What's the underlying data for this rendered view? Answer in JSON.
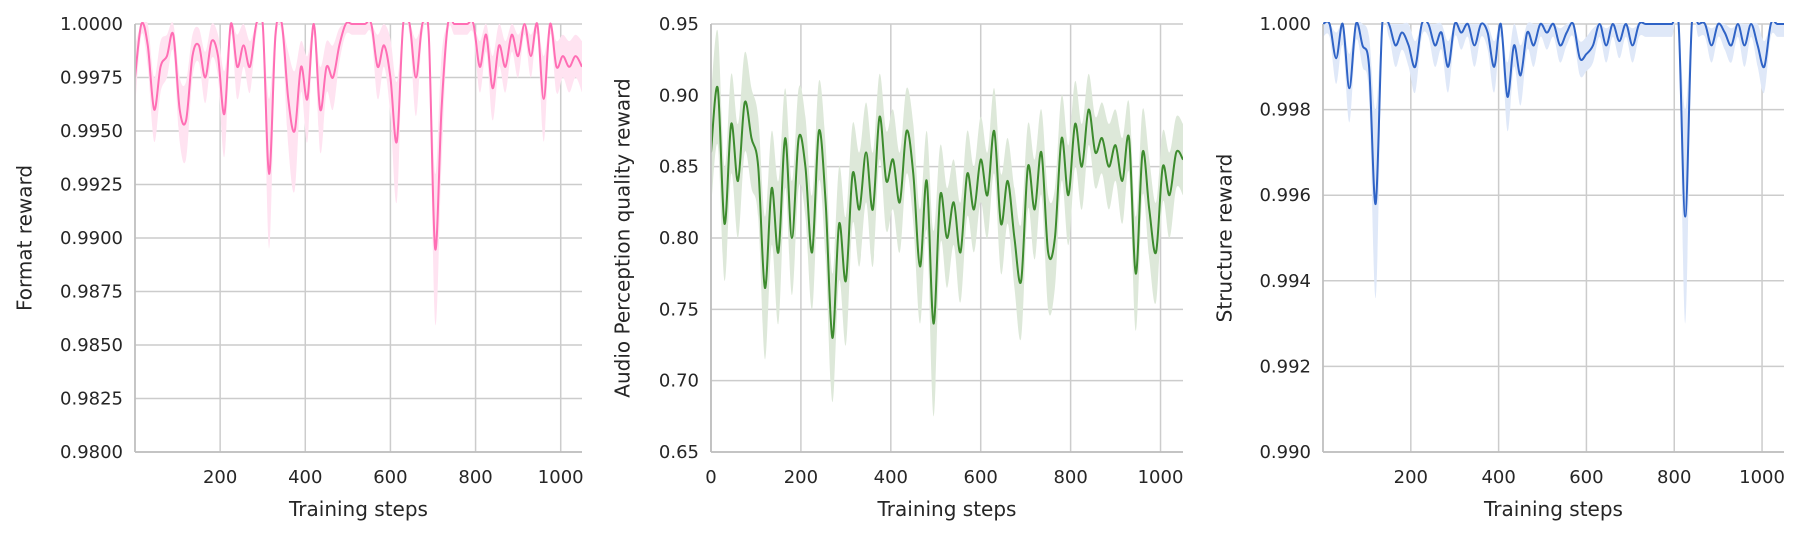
{
  "chart_data": [
    {
      "type": "line",
      "xlabel": "Training steps",
      "ylabel": "Format reward",
      "xlim": [
        0,
        1050
      ],
      "ylim": [
        0.98,
        1.0
      ],
      "xticks": [
        200,
        400,
        600,
        800,
        1000
      ],
      "xtick_labels": [
        "200",
        "400",
        "600",
        "800",
        "1000"
      ],
      "yticks": [
        0.98,
        0.9825,
        0.985,
        0.9875,
        0.99,
        0.9925,
        0.995,
        0.9975,
        1.0
      ],
      "ytick_labels": [
        "0.9800",
        "0.9825",
        "0.9850",
        "0.9875",
        "0.9900",
        "0.9925",
        "0.9950",
        "0.9975",
        "1.0000"
      ],
      "grid": true,
      "line_color": "#ff6eb4",
      "band_color": "#ffe3f1",
      "series": [
        {
          "x": [
            0,
            15,
            30,
            45,
            60,
            75,
            90,
            105,
            120,
            135,
            150,
            165,
            180,
            195,
            210,
            225,
            240,
            255,
            270,
            285,
            300,
            315,
            330,
            345,
            360,
            375,
            390,
            405,
            420,
            435,
            450,
            465,
            480,
            495,
            510,
            525,
            540,
            555,
            570,
            585,
            600,
            615,
            630,
            645,
            660,
            675,
            690,
            705,
            720,
            735,
            750,
            765,
            780,
            795,
            810,
            825,
            840,
            855,
            870,
            885,
            900,
            915,
            930,
            945,
            960,
            975,
            990,
            1005,
            1020,
            1035,
            1050
          ],
          "y": [
            0.9975,
            1.0,
            0.999,
            0.996,
            0.998,
            0.9985,
            0.9995,
            0.996,
            0.9955,
            0.9985,
            0.999,
            0.9975,
            0.9992,
            0.9985,
            0.9958,
            1.0,
            0.998,
            0.999,
            0.998,
            1.0,
            1.0,
            0.993,
            0.9995,
            1.0,
            0.9965,
            0.995,
            0.998,
            0.9965,
            1.0,
            0.996,
            0.998,
            0.9975,
            0.999,
            1.0,
            1.0,
            1.0,
            1.0,
            1.0,
            0.998,
            0.999,
            0.9975,
            0.9945,
            1.0,
            1.0,
            0.9975,
            1.0,
            0.9995,
            0.9895,
            0.996,
            1.0,
            1.0,
            1.0,
            1.0,
            1.0,
            0.998,
            0.9995,
            0.997,
            0.999,
            0.998,
            0.9995,
            0.9985,
            1.0,
            0.9985,
            1.0,
            0.9965,
            1.0,
            0.998,
            0.9985,
            0.998,
            0.9985,
            0.998
          ],
          "band_half_width": [
            0.0015,
            0.0005,
            0.001,
            0.0015,
            0.0012,
            0.001,
            0.0008,
            0.0015,
            0.0018,
            0.001,
            0.0008,
            0.0012,
            0.0008,
            0.001,
            0.002,
            0.0005,
            0.0015,
            0.001,
            0.0012,
            0.0005,
            0.0005,
            0.0035,
            0.0008,
            0.0005,
            0.0022,
            0.0028,
            0.0012,
            0.002,
            0.0005,
            0.002,
            0.0012,
            0.0015,
            0.0008,
            0.0005,
            0.0005,
            0.0005,
            0.0005,
            0.0005,
            0.0015,
            0.001,
            0.0018,
            0.0028,
            0.0005,
            0.0005,
            0.0018,
            0.0005,
            0.0008,
            0.0035,
            0.0025,
            0.0005,
            0.0005,
            0.0005,
            0.0005,
            0.0005,
            0.0012,
            0.0008,
            0.0015,
            0.001,
            0.0012,
            0.0008,
            0.001,
            0.0005,
            0.001,
            0.0005,
            0.002,
            0.0005,
            0.0012,
            0.001,
            0.0012,
            0.001,
            0.0012
          ]
        }
      ]
    },
    {
      "type": "line",
      "xlabel": "Training steps",
      "ylabel": "Audio Perception quality reward",
      "xlim": [
        0,
        1050
      ],
      "ylim": [
        0.65,
        0.95
      ],
      "xticks": [
        0,
        200,
        400,
        600,
        800,
        1000
      ],
      "xtick_labels": [
        "0",
        "200",
        "400",
        "600",
        "800",
        "1000"
      ],
      "yticks": [
        0.65,
        0.7,
        0.75,
        0.8,
        0.85,
        0.9,
        0.95
      ],
      "ytick_labels": [
        "0.65",
        "0.70",
        "0.75",
        "0.80",
        "0.85",
        "0.90",
        "0.95"
      ],
      "grid": true,
      "line_color": "#3d8b2e",
      "band_color": "#dde8d9",
      "series": [
        {
          "x": [
            0,
            15,
            30,
            45,
            60,
            75,
            90,
            105,
            120,
            135,
            150,
            165,
            180,
            195,
            210,
            225,
            240,
            255,
            270,
            285,
            300,
            315,
            330,
            345,
            360,
            375,
            390,
            405,
            420,
            435,
            450,
            465,
            480,
            495,
            510,
            525,
            540,
            555,
            570,
            585,
            600,
            615,
            630,
            645,
            660,
            675,
            690,
            705,
            720,
            735,
            750,
            765,
            780,
            795,
            810,
            825,
            840,
            855,
            870,
            885,
            900,
            915,
            930,
            945,
            960,
            975,
            990,
            1005,
            1020,
            1035,
            1050
          ],
          "y": [
            0.86,
            0.905,
            0.81,
            0.88,
            0.84,
            0.895,
            0.87,
            0.85,
            0.765,
            0.835,
            0.79,
            0.87,
            0.8,
            0.87,
            0.85,
            0.79,
            0.875,
            0.825,
            0.73,
            0.81,
            0.77,
            0.845,
            0.82,
            0.86,
            0.82,
            0.885,
            0.84,
            0.855,
            0.825,
            0.875,
            0.845,
            0.78,
            0.84,
            0.74,
            0.83,
            0.8,
            0.825,
            0.79,
            0.845,
            0.82,
            0.855,
            0.83,
            0.875,
            0.81,
            0.84,
            0.8,
            0.77,
            0.85,
            0.82,
            0.86,
            0.79,
            0.8,
            0.87,
            0.83,
            0.88,
            0.85,
            0.89,
            0.86,
            0.87,
            0.85,
            0.865,
            0.84,
            0.87,
            0.775,
            0.86,
            0.82,
            0.79,
            0.85,
            0.83,
            0.86,
            0.855
          ],
          "band_half_width": [
            0.04,
            0.04,
            0.04,
            0.035,
            0.04,
            0.035,
            0.035,
            0.035,
            0.05,
            0.04,
            0.05,
            0.035,
            0.04,
            0.035,
            0.035,
            0.04,
            0.035,
            0.04,
            0.045,
            0.04,
            0.045,
            0.035,
            0.04,
            0.035,
            0.04,
            0.03,
            0.035,
            0.035,
            0.035,
            0.03,
            0.035,
            0.04,
            0.035,
            0.065,
            0.035,
            0.035,
            0.03,
            0.035,
            0.03,
            0.03,
            0.03,
            0.03,
            0.03,
            0.035,
            0.03,
            0.035,
            0.04,
            0.03,
            0.035,
            0.03,
            0.04,
            0.035,
            0.03,
            0.035,
            0.03,
            0.03,
            0.025,
            0.025,
            0.025,
            0.03,
            0.025,
            0.03,
            0.025,
            0.04,
            0.03,
            0.035,
            0.035,
            0.025,
            0.03,
            0.025,
            0.025
          ]
        }
      ]
    },
    {
      "type": "line",
      "xlabel": "Training steps",
      "ylabel": "Structure reward",
      "xlim": [
        0,
        1050
      ],
      "ylim": [
        0.99,
        1.0
      ],
      "xticks": [
        200,
        400,
        600,
        800,
        1000
      ],
      "xtick_labels": [
        "200",
        "400",
        "600",
        "800",
        "1000"
      ],
      "yticks": [
        0.99,
        0.992,
        0.994,
        0.996,
        0.998,
        1.0
      ],
      "ytick_labels": [
        "0.990",
        "0.992",
        "0.994",
        "0.996",
        "0.998",
        "1.000"
      ],
      "grid": true,
      "line_color": "#2f63c6",
      "band_color": "#dfe8f8",
      "series": [
        {
          "x": [
            0,
            15,
            30,
            45,
            60,
            75,
            90,
            105,
            120,
            135,
            150,
            165,
            180,
            195,
            210,
            225,
            240,
            255,
            270,
            285,
            300,
            315,
            330,
            345,
            360,
            375,
            390,
            405,
            420,
            435,
            450,
            465,
            480,
            495,
            510,
            525,
            540,
            555,
            570,
            585,
            600,
            615,
            630,
            645,
            660,
            675,
            690,
            705,
            720,
            735,
            750,
            765,
            780,
            795,
            810,
            825,
            840,
            855,
            870,
            885,
            900,
            915,
            930,
            945,
            960,
            975,
            990,
            1005,
            1020,
            1035,
            1050
          ],
          "y": [
            1.0,
            1.0,
            0.9992,
            1.0,
            0.9985,
            1.0,
            0.9995,
            0.999,
            0.9958,
            1.0,
            1.0,
            0.9995,
            0.9998,
            0.9995,
            0.999,
            1.0,
            1.0,
            0.9995,
            0.9998,
            0.999,
            1.0,
            0.9998,
            1.0,
            0.9995,
            1.0,
            0.9998,
            0.999,
            1.0,
            0.9983,
            0.9995,
            0.9988,
            0.9998,
            0.9995,
            1.0,
            0.9998,
            1.0,
            0.9995,
            0.9998,
            1.0,
            0.9992,
            0.9993,
            0.9995,
            1.0,
            0.9995,
            1.0,
            0.9996,
            1.0,
            0.9995,
            1.0,
            1.0,
            1.0,
            1.0,
            1.0,
            1.0,
            1.0,
            0.9955,
            1.0,
            1.0,
            1.0,
            0.9995,
            1.0,
            0.9998,
            0.9995,
            1.0,
            0.9995,
            1.0,
            0.9995,
            0.999,
            1.0,
            1.0,
            1.0
          ],
          "band_half_width": [
            0.0003,
            0.0003,
            0.0006,
            0.0005,
            0.0008,
            0.0004,
            0.0005,
            0.0007,
            0.0022,
            0.0004,
            0.0003,
            0.0005,
            0.0004,
            0.0005,
            0.0006,
            0.0003,
            0.0003,
            0.0005,
            0.0004,
            0.0006,
            0.0003,
            0.0004,
            0.0003,
            0.0005,
            0.0003,
            0.0004,
            0.0006,
            0.0003,
            0.0008,
            0.0005,
            0.0007,
            0.0004,
            0.0005,
            0.0003,
            0.0004,
            0.0003,
            0.0004,
            0.0003,
            0.0003,
            0.0004,
            0.0004,
            0.0004,
            0.0003,
            0.0004,
            0.0003,
            0.0004,
            0.0003,
            0.0004,
            0.0003,
            0.0003,
            0.0003,
            0.0003,
            0.0003,
            0.0003,
            0.0003,
            0.0025,
            0.0003,
            0.0003,
            0.0003,
            0.0004,
            0.0003,
            0.0004,
            0.0004,
            0.0003,
            0.0005,
            0.0003,
            0.0005,
            0.0006,
            0.0003,
            0.0003,
            0.0003
          ]
        }
      ]
    }
  ]
}
